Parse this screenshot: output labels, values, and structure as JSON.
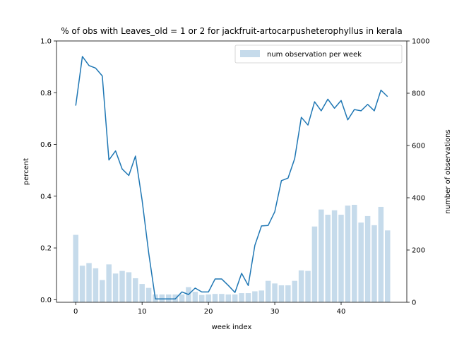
{
  "chart_data": {
    "type": "bar",
    "title": "% of obs with Leaves_old = 1 or 2 for jackfruit-artocarpusheterophyllus in kerala",
    "xlabel": "week index",
    "ylabel": "percent",
    "ylabel_right": "number of observations",
    "xlim": [
      -2.9,
      49.9
    ],
    "ylim": [
      -0.01,
      1.0
    ],
    "ylim_right": [
      0,
      1000
    ],
    "xticks": [
      0,
      10,
      20,
      30,
      40
    ],
    "yticks": [
      0.0,
      0.2,
      0.4,
      0.6,
      0.8,
      1.0
    ],
    "yticks_right": [
      0,
      200,
      400,
      600,
      800,
      1000
    ],
    "x": [
      0,
      1,
      2,
      3,
      4,
      5,
      6,
      7,
      8,
      9,
      10,
      11,
      12,
      13,
      14,
      15,
      16,
      17,
      18,
      19,
      20,
      21,
      22,
      23,
      24,
      25,
      26,
      27,
      28,
      29,
      30,
      31,
      32,
      33,
      34,
      35,
      36,
      37,
      38,
      39,
      40,
      41,
      42,
      43,
      44,
      45,
      46,
      47
    ],
    "series": [
      {
        "name": "num observation per week",
        "kind": "bar",
        "axis": "right",
        "color": "#c6dbeb",
        "values": [
          258,
          140,
          150,
          130,
          85,
          145,
          110,
          120,
          115,
          92,
          70,
          55,
          30,
          30,
          30,
          30,
          30,
          58,
          40,
          28,
          30,
          32,
          32,
          30,
          30,
          35,
          35,
          42,
          45,
          82,
          72,
          65,
          65,
          82,
          122,
          120,
          290,
          355,
          335,
          352,
          335,
          370,
          373,
          305,
          330,
          295,
          365,
          275
        ]
      },
      {
        "kind": "line",
        "axis": "left",
        "color": "#1f77b4",
        "values": [
          0.75,
          0.94,
          0.905,
          0.895,
          0.865,
          0.54,
          0.575,
          0.505,
          0.48,
          0.555,
          0.385,
          0.18,
          0.003,
          0.003,
          0.003,
          0.003,
          0.03,
          0.02,
          0.045,
          0.03,
          0.03,
          0.08,
          0.08,
          0.055,
          0.028,
          0.102,
          0.055,
          0.21,
          0.285,
          0.287,
          0.34,
          0.46,
          0.47,
          0.545,
          0.705,
          0.675,
          0.765,
          0.73,
          0.775,
          0.74,
          0.77,
          0.695,
          0.735,
          0.73,
          0.755,
          0.73,
          0.81,
          0.785
        ]
      }
    ],
    "legend": {
      "placement": "top-right"
    },
    "grid": false
  }
}
